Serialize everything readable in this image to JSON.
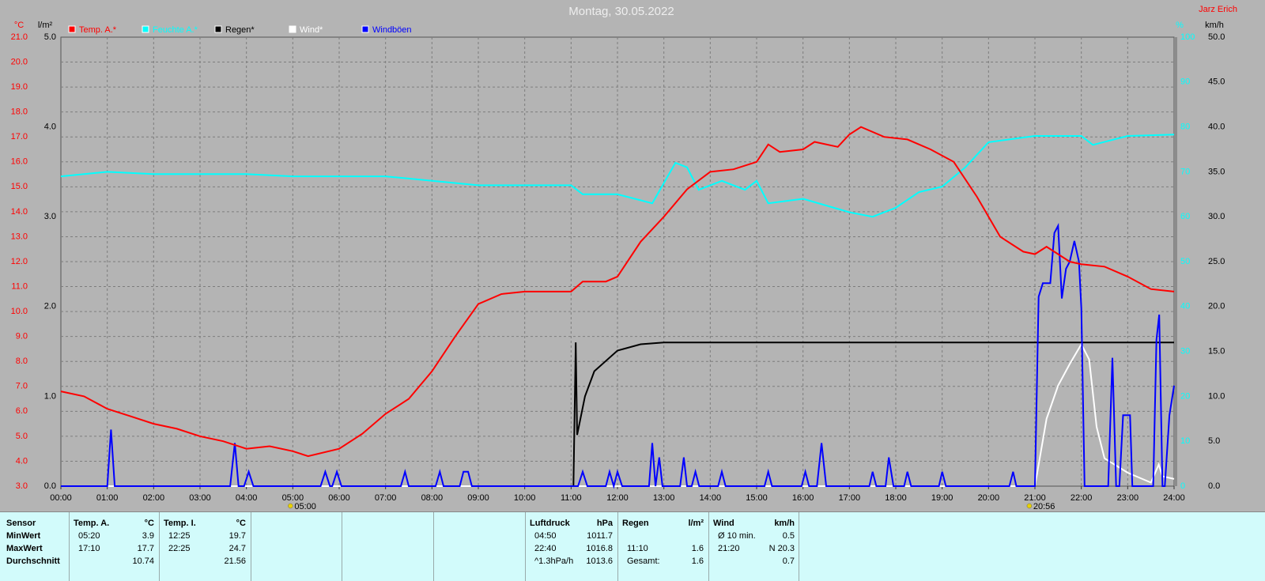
{
  "chart_data": {
    "type": "line",
    "title": "Montag, 30.05.2022",
    "credit": "Jarz Erich",
    "y_unit": "°C",
    "y2_unit": "l/m²",
    "y3_unit": "%",
    "y4_unit": "km/h",
    "grid": true,
    "xlim": [
      0,
      24
    ],
    "xticks": [
      {
        "value": 0,
        "label": "00:00"
      },
      {
        "value": 1,
        "label": "01:00"
      },
      {
        "value": 2,
        "label": "02:00"
      },
      {
        "value": 3,
        "label": "03:00"
      },
      {
        "value": 4,
        "label": "04:00"
      },
      {
        "value": 5,
        "label": "05:00"
      },
      {
        "value": 6,
        "label": "06:00"
      },
      {
        "value": 7,
        "label": "07:00"
      },
      {
        "value": 8,
        "label": "08:00"
      },
      {
        "value": 9,
        "label": "09:00"
      },
      {
        "value": 10,
        "label": "10:00"
      },
      {
        "value": 11,
        "label": "11:00"
      },
      {
        "value": 12,
        "label": "12:00"
      },
      {
        "value": 13,
        "label": "13:00"
      },
      {
        "value": 14,
        "label": "14:00"
      },
      {
        "value": 15,
        "label": "15:00"
      },
      {
        "value": 16,
        "label": "16:00"
      },
      {
        "value": 17,
        "label": "17:00"
      },
      {
        "value": 18,
        "label": "18:00"
      },
      {
        "value": 19,
        "label": "19:00"
      },
      {
        "value": 20,
        "label": "20:00"
      },
      {
        "value": 21,
        "label": "21:00"
      },
      {
        "value": 22,
        "label": "22:00"
      },
      {
        "value": 23,
        "label": "23:00"
      },
      {
        "value": 24,
        "label": "24:00"
      }
    ],
    "ylim": [
      3,
      21
    ],
    "yticks": [
      {
        "value": 3,
        "label": "3.0"
      },
      {
        "value": 4,
        "label": "4.0"
      },
      {
        "value": 5,
        "label": "5.0"
      },
      {
        "value": 6,
        "label": "6.0"
      },
      {
        "value": 7,
        "label": "7.0"
      },
      {
        "value": 8,
        "label": "8.0"
      },
      {
        "value": 9,
        "label": "9.0"
      },
      {
        "value": 10,
        "label": "10.0"
      },
      {
        "value": 11,
        "label": "11.0"
      },
      {
        "value": 12,
        "label": "12.0"
      },
      {
        "value": 13,
        "label": "13.0"
      },
      {
        "value": 14,
        "label": "14.0"
      },
      {
        "value": 15,
        "label": "15.0"
      },
      {
        "value": 16,
        "label": "16.0"
      },
      {
        "value": 17,
        "label": "17.0"
      },
      {
        "value": 18,
        "label": "18.0"
      },
      {
        "value": 19,
        "label": "19.0"
      },
      {
        "value": 20,
        "label": "20.0"
      },
      {
        "value": 21,
        "label": "21.0"
      }
    ],
    "y2lim": [
      0,
      5
    ],
    "y2ticks": [
      {
        "value": 0,
        "label": "0.0"
      },
      {
        "value": 1,
        "label": "1.0"
      },
      {
        "value": 2,
        "label": "2.0"
      },
      {
        "value": 3,
        "label": "3.0"
      },
      {
        "value": 4,
        "label": "4.0"
      },
      {
        "value": 5,
        "label": "5.0"
      }
    ],
    "y3lim": [
      0,
      100
    ],
    "y3ticks": [
      0,
      10,
      20,
      30,
      40,
      50,
      60,
      70,
      80,
      90,
      100
    ],
    "y4lim": [
      0,
      50
    ],
    "y4ticks": [
      {
        "value": 0,
        "label": "0.0"
      },
      {
        "value": 5,
        "label": "5.0"
      },
      {
        "value": 10,
        "label": "10.0"
      },
      {
        "value": 15,
        "label": "15.0"
      },
      {
        "value": 20,
        "label": "20.0"
      },
      {
        "value": 25,
        "label": "25.0"
      },
      {
        "value": 30,
        "label": "30.0"
      },
      {
        "value": 35,
        "label": "35.0"
      },
      {
        "value": 40,
        "label": "40.0"
      },
      {
        "value": 45,
        "label": "45.0"
      },
      {
        "value": 50,
        "label": "50.0"
      }
    ],
    "sun_markers": [
      {
        "x": 5.0,
        "label": "05:00"
      },
      {
        "x": 20.93,
        "label": "20:56"
      }
    ],
    "series": [
      {
        "name": "Temp. A.*",
        "color": "#ff0000",
        "axis": "y",
        "x": [
          0,
          0.5,
          1,
          1.5,
          2,
          2.5,
          3,
          3.5,
          4,
          4.5,
          5,
          5.33,
          6,
          6.5,
          7,
          7.5,
          8,
          8.5,
          9,
          9.5,
          10,
          11,
          11.25,
          11.75,
          12,
          12.5,
          13,
          13.5,
          14,
          14.5,
          15,
          15.25,
          15.5,
          16,
          16.25,
          16.75,
          17,
          17.25,
          17.75,
          18.25,
          18.75,
          19.25,
          19.75,
          20.25,
          20.75,
          21,
          21.25,
          21.75,
          22,
          22.5,
          23,
          23.5,
          24
        ],
        "values": [
          6.8,
          6.6,
          6.1,
          5.8,
          5.5,
          5.3,
          5.0,
          4.8,
          4.5,
          4.6,
          4.4,
          4.2,
          4.5,
          5.1,
          5.9,
          6.5,
          7.6,
          9.0,
          10.3,
          10.7,
          10.8,
          10.8,
          11.2,
          11.2,
          11.4,
          12.8,
          13.8,
          14.9,
          15.6,
          15.7,
          16.0,
          16.7,
          16.4,
          16.5,
          16.8,
          16.6,
          17.1,
          17.4,
          17.0,
          16.9,
          16.5,
          16.0,
          14.6,
          13.0,
          12.4,
          12.3,
          12.6,
          12.0,
          11.9,
          11.8,
          11.4,
          10.9,
          10.8
        ]
      },
      {
        "name": "Feuchte A.*",
        "color": "#00ffff",
        "axis": "y3",
        "x": [
          0,
          1,
          2,
          4,
          5,
          7,
          9,
          11,
          11.25,
          12,
          12.75,
          13.25,
          13.5,
          13.75,
          14.25,
          14.75,
          15,
          15.25,
          16,
          16.5,
          17,
          17.5,
          18,
          18.5,
          19,
          19.5,
          20,
          21,
          22,
          22.25,
          23,
          24
        ],
        "values": [
          69,
          70,
          69.5,
          69.5,
          69,
          69,
          67,
          67,
          65,
          65,
          63,
          72,
          71,
          66,
          68,
          66,
          68,
          63,
          64,
          62.5,
          61,
          60,
          62,
          65.5,
          66.7,
          71,
          76.6,
          78,
          78,
          76,
          78,
          78.3
        ]
      },
      {
        "name": "Regen*",
        "color": "#000000",
        "axis": "y2",
        "x": [
          0,
          11.05,
          11.1,
          11.13,
          11.3,
          11.5,
          12,
          12.5,
          13,
          24
        ],
        "values": [
          0,
          0,
          1.6,
          0.57,
          1.0,
          1.28,
          1.51,
          1.58,
          1.6,
          1.6
        ]
      },
      {
        "name": "Wind*",
        "color": "#ffffff",
        "axis": "y4",
        "x": [
          0,
          21.0,
          21.25,
          21.5,
          21.75,
          22.0,
          22.17,
          22.33,
          22.5,
          23.0,
          23.5,
          23.67,
          23.75,
          24.0
        ],
        "values": [
          0,
          0,
          7.5,
          11.2,
          13.6,
          15.8,
          14.1,
          6.6,
          3.1,
          1.5,
          0.4,
          2.4,
          1.1,
          0.8
        ]
      },
      {
        "name": "Windböen",
        "color": "#0000ff",
        "axis": "y4",
        "x": [
          0,
          1.0,
          1.08,
          1.16,
          3.65,
          3.75,
          3.83,
          3.95,
          4.05,
          4.15,
          5.6,
          5.7,
          5.8,
          5.85,
          5.95,
          6.05,
          7.33,
          7.42,
          7.5,
          8.08,
          8.17,
          8.25,
          8.6,
          8.68,
          8.78,
          8.86,
          11.15,
          11.25,
          11.35,
          11.75,
          11.83,
          11.92,
          12.0,
          12.1,
          12.68,
          12.75,
          12.82,
          12.9,
          12.97,
          13.35,
          13.43,
          13.5,
          13.6,
          13.68,
          13.76,
          14.17,
          14.25,
          14.33,
          15.17,
          15.25,
          15.33,
          15.97,
          16.05,
          16.13,
          16.3,
          16.4,
          16.5,
          17.43,
          17.5,
          17.58,
          17.78,
          17.85,
          17.95,
          18.18,
          18.25,
          18.33,
          18.93,
          19.0,
          19.08,
          20.45,
          20.53,
          20.6,
          21.0,
          21.08,
          21.17,
          21.33,
          21.42,
          21.5,
          21.58,
          21.67,
          21.75,
          21.85,
          21.95,
          22.0,
          22.07,
          22.58,
          22.67,
          22.75,
          22.82,
          22.9,
          23.05,
          23.1,
          23.55,
          23.62,
          23.68,
          23.75,
          23.8,
          23.9,
          24.0
        ],
        "values": [
          0,
          0,
          6.3,
          0,
          0,
          4.8,
          0,
          0,
          1.6,
          0,
          0,
          1.6,
          0,
          0,
          1.6,
          0,
          0,
          1.6,
          0,
          0,
          1.6,
          0,
          0,
          1.6,
          1.6,
          0,
          0,
          1.6,
          0,
          0,
          1.6,
          0,
          1.6,
          0,
          0,
          4.8,
          0,
          3.2,
          0,
          0,
          3.2,
          0,
          0,
          1.6,
          0,
          0,
          1.6,
          0,
          0,
          1.6,
          0,
          0,
          1.6,
          0,
          0,
          4.8,
          0,
          0,
          1.6,
          0,
          0,
          3.2,
          0,
          0,
          1.6,
          0,
          0,
          1.6,
          0,
          0,
          1.6,
          0,
          0,
          21.1,
          22.6,
          22.6,
          28.2,
          29.0,
          20.9,
          24.2,
          25.0,
          27.3,
          25.0,
          19.8,
          0,
          0,
          14.3,
          0,
          0,
          7.9,
          7.9,
          0,
          0,
          16.3,
          19.1,
          0,
          0,
          7.9,
          11.2
        ]
      }
    ]
  },
  "stats_table": {
    "sensor": {
      "header": "Sensor",
      "rows": [
        "MinWert",
        "MaxWert",
        "Durchschnitt"
      ]
    },
    "columns": [
      {
        "header": "Temp. A.",
        "unit": "°C",
        "min": [
          "05:20",
          "3.9"
        ],
        "max": [
          "17:10",
          "17.7"
        ],
        "avg": [
          "10.74"
        ]
      },
      {
        "header": "Temp. I.",
        "unit": "°C",
        "min": [
          "12:25",
          "19.7"
        ],
        "max": [
          "22:25",
          "24.7"
        ],
        "avg": [
          "21.56"
        ]
      },
      {
        "header": "Luftdruck",
        "unit": "hPa",
        "min": [
          "04:50",
          "1011.7"
        ],
        "max": [
          "22:40",
          "1016.8"
        ],
        "avg": [
          "^1.3hPa/h",
          "1013.6"
        ]
      },
      {
        "header": "Regen",
        "unit": "l/m²",
        "max": [
          "11:10",
          "1.6"
        ],
        "avg": [
          "Gesamt:",
          "1.6"
        ]
      },
      {
        "header": "Wind",
        "unit": "km/h",
        "min": [
          "Ø 10 min.",
          "0.5"
        ],
        "max": [
          "21:20",
          "N 20.3"
        ],
        "avg": [
          "0.7"
        ]
      }
    ]
  }
}
